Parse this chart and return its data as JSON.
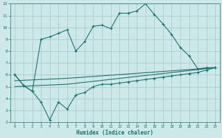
{
  "xlabel": "Humidex (Indice chaleur)",
  "bg_color": "#cce8e8",
  "grid_color": "#aacccc",
  "line_color": "#1a7070",
  "xlim": [
    -0.5,
    23.5
  ],
  "ylim": [
    2,
    12
  ],
  "xticks": [
    0,
    1,
    2,
    3,
    4,
    5,
    6,
    7,
    8,
    9,
    10,
    11,
    12,
    13,
    14,
    15,
    16,
    17,
    18,
    19,
    20,
    21,
    22,
    23
  ],
  "yticks": [
    2,
    3,
    4,
    5,
    6,
    7,
    8,
    9,
    10,
    11,
    12
  ],
  "line1_x": [
    0,
    1,
    2,
    3,
    4,
    5,
    6,
    7,
    8,
    9,
    10,
    11,
    12,
    13,
    14,
    15,
    16,
    17,
    18,
    19,
    20,
    21,
    22,
    23
  ],
  "line1_y": [
    6.0,
    5.1,
    4.6,
    9.0,
    9.2,
    9.5,
    9.8,
    8.0,
    8.8,
    10.1,
    10.2,
    9.9,
    11.2,
    11.2,
    11.4,
    12.0,
    11.1,
    10.3,
    9.4,
    8.3,
    7.6,
    6.5,
    6.6,
    6.6
  ],
  "line2_x": [
    0,
    1,
    2,
    3,
    4,
    5,
    6,
    7,
    8,
    9,
    10,
    11,
    12,
    13,
    14,
    15,
    16,
    17,
    18,
    19,
    20,
    21,
    22,
    23
  ],
  "line2_y": [
    6.0,
    5.1,
    4.6,
    3.7,
    2.2,
    3.7,
    3.1,
    4.3,
    4.5,
    5.0,
    5.2,
    5.2,
    5.3,
    5.4,
    5.5,
    5.6,
    5.7,
    5.8,
    5.9,
    6.0,
    6.1,
    6.2,
    6.4,
    6.6
  ],
  "line3_x": [
    0,
    6,
    23
  ],
  "line3_y": [
    5.5,
    5.7,
    6.6
  ],
  "line4_x": [
    0,
    6,
    23
  ],
  "line4_y": [
    5.0,
    5.2,
    6.6
  ]
}
